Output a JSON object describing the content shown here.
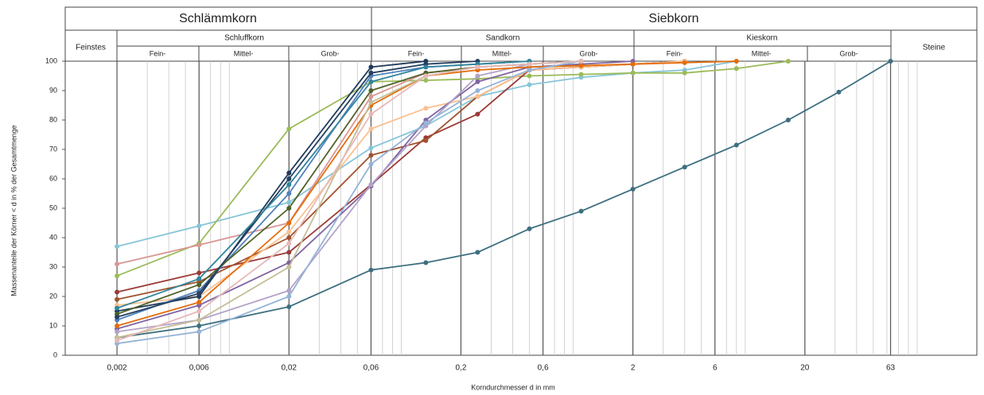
{
  "chart_data": {
    "type": "line",
    "header": {
      "groups": [
        "Schlämmkorn",
        "Siebkorn"
      ],
      "classes": [
        "Feinstes",
        "Schluffkorn",
        "Sandkorn",
        "Kieskorn",
        "Steine"
      ],
      "subclasses": [
        "Fein-",
        "Mittel-",
        "Grob-"
      ]
    },
    "x_label": "Korndurchmesser d in mm",
    "y_label": "Massenanteile der Körner < d in % der Gesamtmenge",
    "log_x": true,
    "xlim": [
      0.001,
      200
    ],
    "ylim": [
      0,
      100
    ],
    "xticks": [
      {
        "value": 0.002,
        "label": "0,002"
      },
      {
        "value": 0.006,
        "label": "0,006"
      },
      {
        "value": 0.02,
        "label": "0,02"
      },
      {
        "value": 0.06,
        "label": "0,06"
      },
      {
        "value": 0.2,
        "label": "0,2"
      },
      {
        "value": 0.6,
        "label": "0,6"
      },
      2,
      6,
      20,
      63
    ],
    "yticks": [
      0,
      10,
      20,
      30,
      40,
      50,
      60,
      70,
      80,
      90,
      100
    ],
    "x": [
      0.002,
      0.006,
      0.02,
      0.06,
      0.125,
      0.25,
      0.5,
      1,
      2,
      4,
      8,
      16,
      31.5,
      63
    ],
    "series": [
      {
        "color": "#3d6f80",
        "values": [
          6,
          10,
          16.5,
          29,
          31.5,
          35,
          43,
          49,
          56.5,
          64,
          71.5,
          80,
          89.5,
          100
        ]
      },
      {
        "color": "#86c5d8",
        "values": [
          37,
          44,
          52,
          70.5,
          78,
          88,
          92,
          94.5,
          96,
          97,
          100,
          null,
          null,
          null
        ]
      },
      {
        "color": "#9bbb59",
        "values": [
          27,
          38,
          77,
          93,
          93.5,
          94,
          95,
          95.5,
          96,
          96,
          97.5,
          100,
          null,
          null
        ]
      },
      {
        "color": "#d99694",
        "values": [
          31,
          37.5,
          45,
          88,
          96,
          98,
          99,
          100,
          null,
          null,
          null,
          null,
          null,
          null
        ]
      },
      {
        "color": "#9b3a36",
        "values": [
          21.5,
          28,
          35,
          58,
          74,
          82,
          97,
          98,
          99,
          100,
          null,
          null,
          null,
          null
        ]
      },
      {
        "color": "#a0522d",
        "values": [
          19,
          25,
          40,
          68,
          73,
          88,
          97,
          98,
          99,
          100,
          null,
          null,
          null,
          null
        ]
      },
      {
        "color": "#fac090",
        "values": [
          17,
          20,
          42,
          77,
          84,
          88,
          97,
          98,
          99,
          100,
          null,
          null,
          null,
          null
        ]
      },
      {
        "color": "#1f3a5a",
        "values": [
          15,
          20,
          62,
          98,
          100,
          null,
          null,
          null,
          null,
          null,
          null,
          null,
          null,
          null
        ]
      },
      {
        "color": "#8064a2",
        "values": [
          9,
          17,
          31.5,
          57.5,
          80,
          93,
          98,
          99,
          100,
          null,
          null,
          null,
          null,
          null
        ]
      },
      {
        "color": "#b3a2c7",
        "values": [
          8,
          12,
          22,
          58,
          78,
          95,
          99,
          100,
          null,
          null,
          null,
          null,
          null,
          null
        ]
      },
      {
        "color": "#4f81bd",
        "values": [
          12,
          22,
          55,
          95,
          98,
          99,
          100,
          null,
          null,
          null,
          null,
          null,
          null,
          null
        ]
      },
      {
        "color": "#4f6228",
        "values": [
          14,
          24,
          50,
          90,
          96,
          98,
          99,
          100,
          null,
          null,
          null,
          null,
          null,
          null
        ]
      },
      {
        "color": "#e46c0a",
        "values": [
          10,
          18,
          45,
          85,
          95,
          97,
          98,
          98.5,
          99,
          99.5,
          100,
          null,
          null,
          null
        ]
      },
      {
        "color": "#95b3d7",
        "values": [
          4,
          8,
          20,
          65,
          79,
          90,
          97,
          100,
          null,
          null,
          null,
          null,
          null,
          null
        ]
      },
      {
        "color": "#254061",
        "values": [
          13,
          21,
          60,
          96,
          99,
          100,
          null,
          null,
          null,
          null,
          null,
          null,
          null,
          null
        ]
      },
      {
        "color": "#31859c",
        "values": [
          16,
          26,
          58,
          93,
          98,
          99,
          100,
          null,
          null,
          null,
          null,
          null,
          null,
          null
        ]
      },
      {
        "color": "#c4bd97",
        "values": [
          6,
          12,
          30,
          86,
          95,
          98,
          99,
          100,
          null,
          null,
          null,
          null,
          null,
          null
        ]
      },
      {
        "color": "#e6b9b8",
        "values": [
          5,
          15,
          38,
          82,
          95,
          98,
          99,
          100,
          null,
          null,
          null,
          null,
          null,
          null
        ]
      }
    ]
  }
}
